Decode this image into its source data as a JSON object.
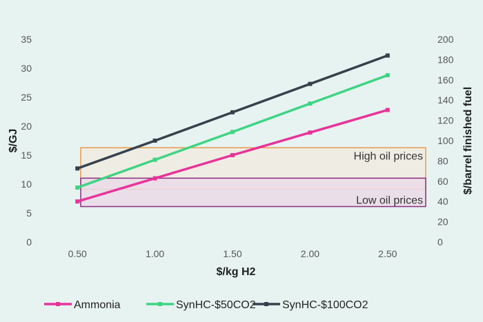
{
  "chart_data": {
    "type": "line",
    "xlabel": "$/kg H2",
    "ylabel": "$/GJ",
    "y2label": "$/barrel finished fuel",
    "x": [
      0.5,
      1.0,
      1.5,
      2.0,
      2.5
    ],
    "x_tick_labels": [
      "0.50",
      "1.00",
      "1.50",
      "2.00",
      "2.50"
    ],
    "xlim": [
      0.25,
      2.75
    ],
    "ylim": [
      0,
      35
    ],
    "y_ticks": [
      0,
      5,
      10,
      15,
      20,
      25,
      30,
      35
    ],
    "y2lim": [
      0,
      200
    ],
    "y2_ticks": [
      0,
      20,
      40,
      60,
      80,
      100,
      120,
      140,
      160,
      180,
      200
    ],
    "grid": false,
    "legend_position": "bottom",
    "series": [
      {
        "name": "Ammonia",
        "color": "#e8339a",
        "values": [
          7.0,
          11.0,
          15.0,
          18.9,
          22.8
        ]
      },
      {
        "name": "SynHC-$50CO2",
        "color": "#3fd483",
        "values": [
          9.4,
          14.2,
          19.0,
          23.9,
          28.8
        ]
      },
      {
        "name": "SynHC-$100CO2",
        "color": "#35414c",
        "values": [
          12.7,
          17.5,
          22.4,
          27.3,
          32.2
        ]
      }
    ],
    "bands": [
      {
        "label": "High oil prices",
        "y2_range": [
          52,
          93
        ],
        "fill": "#efece1",
        "stroke": "#e8984c"
      },
      {
        "label": "Low oil prices",
        "y2_range": [
          35,
          63
        ],
        "fill": "#eadbe7",
        "stroke": "#8a2c7d"
      }
    ]
  }
}
